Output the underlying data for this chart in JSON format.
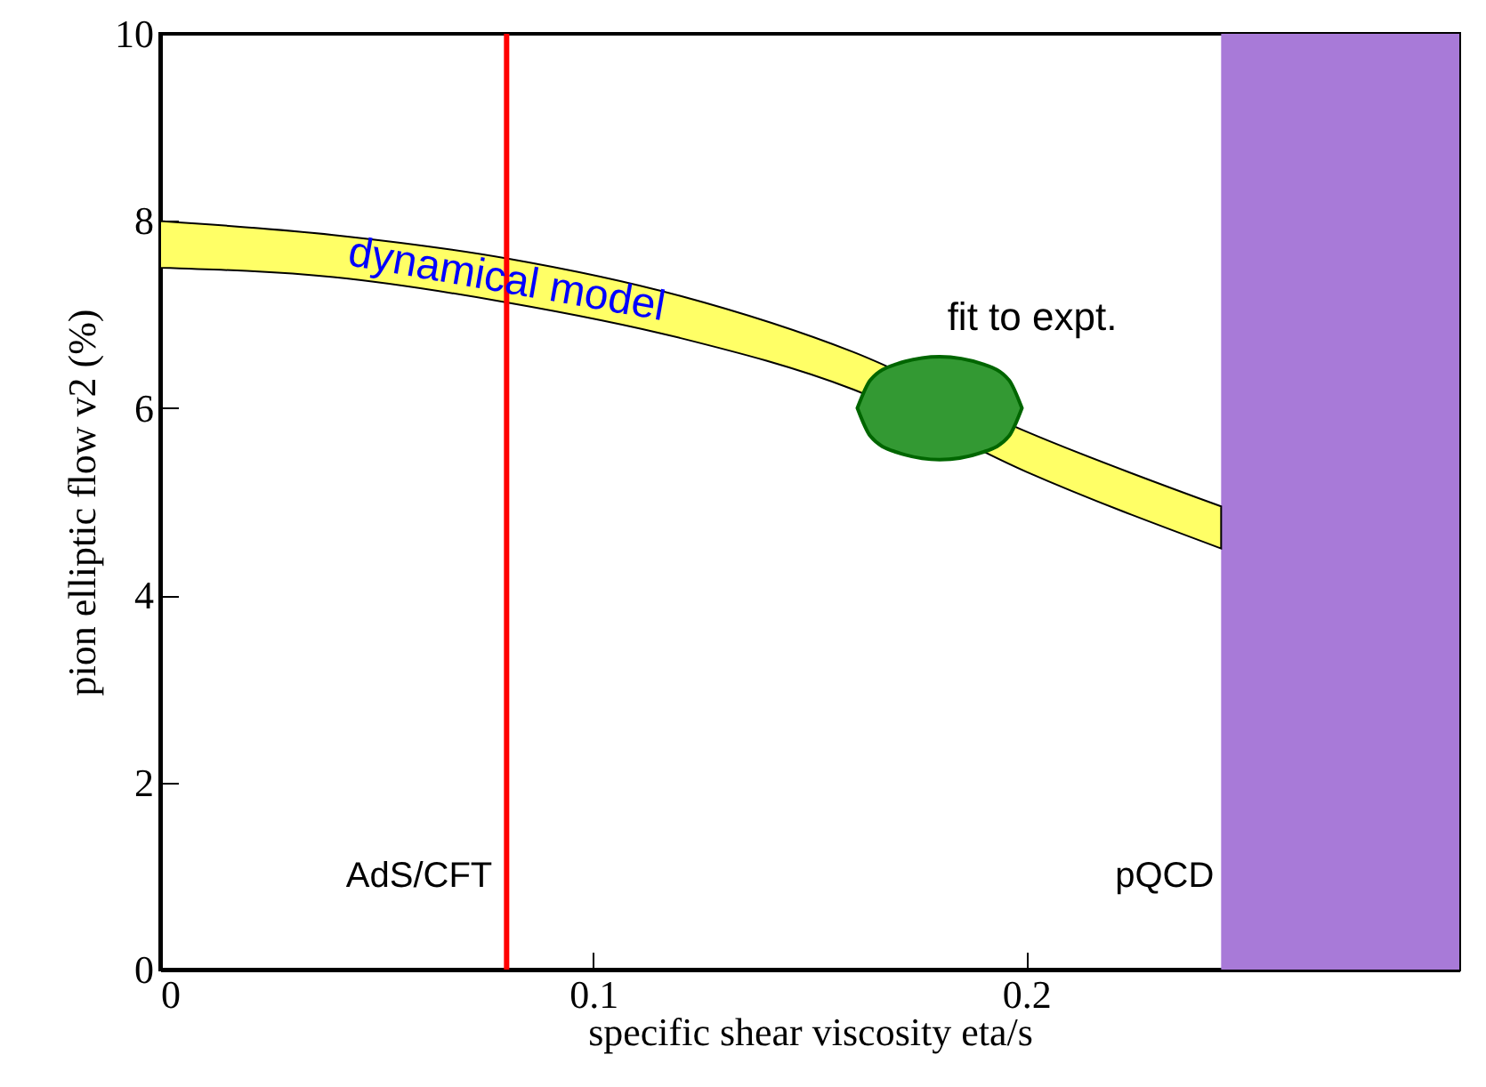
{
  "chart_data": {
    "type": "area",
    "xlabel": "specific shear viscosity eta/s",
    "ylabel": "pion elliptic flow v2 (%)",
    "xlim": [
      0,
      0.3
    ],
    "ylim": [
      0,
      10
    ],
    "xticks": [
      0,
      0.1,
      0.2
    ],
    "yticks": [
      0,
      2,
      4,
      6,
      8,
      10
    ],
    "grid": false,
    "series": [
      {
        "color": "#ffff66",
        "x": [
          0,
          0.04,
          0.08,
          0.12,
          0.16,
          0.2,
          0.245
        ],
        "values": [
          null,
          null,
          null,
          null,
          null,
          null,
          null
        ],
        "lower": [
          7.5,
          7.4,
          7.13,
          6.75,
          6.2,
          5.32,
          4.5
        ],
        "upper": [
          8.0,
          7.85,
          7.6,
          7.2,
          6.6,
          5.75,
          4.95
        ]
      },
      {
        "color": "#339933",
        "x": [
          0.161,
          0.164,
          0.17,
          0.18,
          0.19,
          0.196,
          0.199
        ],
        "values": [
          null,
          null,
          null,
          null,
          null,
          null,
          null
        ],
        "lower": [
          6.0,
          5.7,
          5.53,
          5.45,
          5.53,
          5.7,
          6.0
        ],
        "upper": [
          6.0,
          6.3,
          6.47,
          6.55,
          6.47,
          6.3,
          6.0
        ]
      }
    ],
    "ref_lines": [
      {
        "axis": "x",
        "value": 0.08,
        "label": "AdS/CFT",
        "color": "#ff0000"
      }
    ],
    "bands": [
      {
        "axis": "x",
        "from": 0.245,
        "to": 0.3,
        "label": "pQCD",
        "color": "#a87ad8"
      }
    ],
    "annotations": [
      "dynamical model",
      "fit to expt."
    ]
  }
}
